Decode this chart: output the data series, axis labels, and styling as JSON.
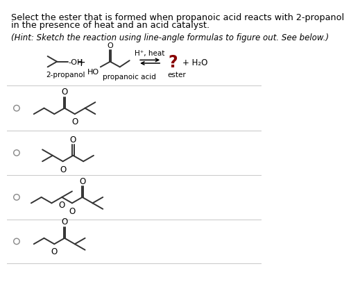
{
  "title_line1": "Select the ester that is formed when propanoic acid reacts with 2-propanol",
  "title_line2": "in the presence of heat and an acid catalyst.",
  "hint_text": "(Hint: Sketch the reaction using line-angle formulas to figure out. See below.)",
  "background_color": "#ffffff",
  "text_color": "#000000",
  "struct_color": "#333333",
  "question_mark_color": "#880000",
  "label_2propanol": "2-propanol",
  "label_propanoic": "propanoic acid",
  "label_ester": "ester",
  "reaction_label": "H⁺, heat",
  "h2o_label": "+ H₂O",
  "divider_color": "#cccccc",
  "radio_edge_color": "#888888"
}
